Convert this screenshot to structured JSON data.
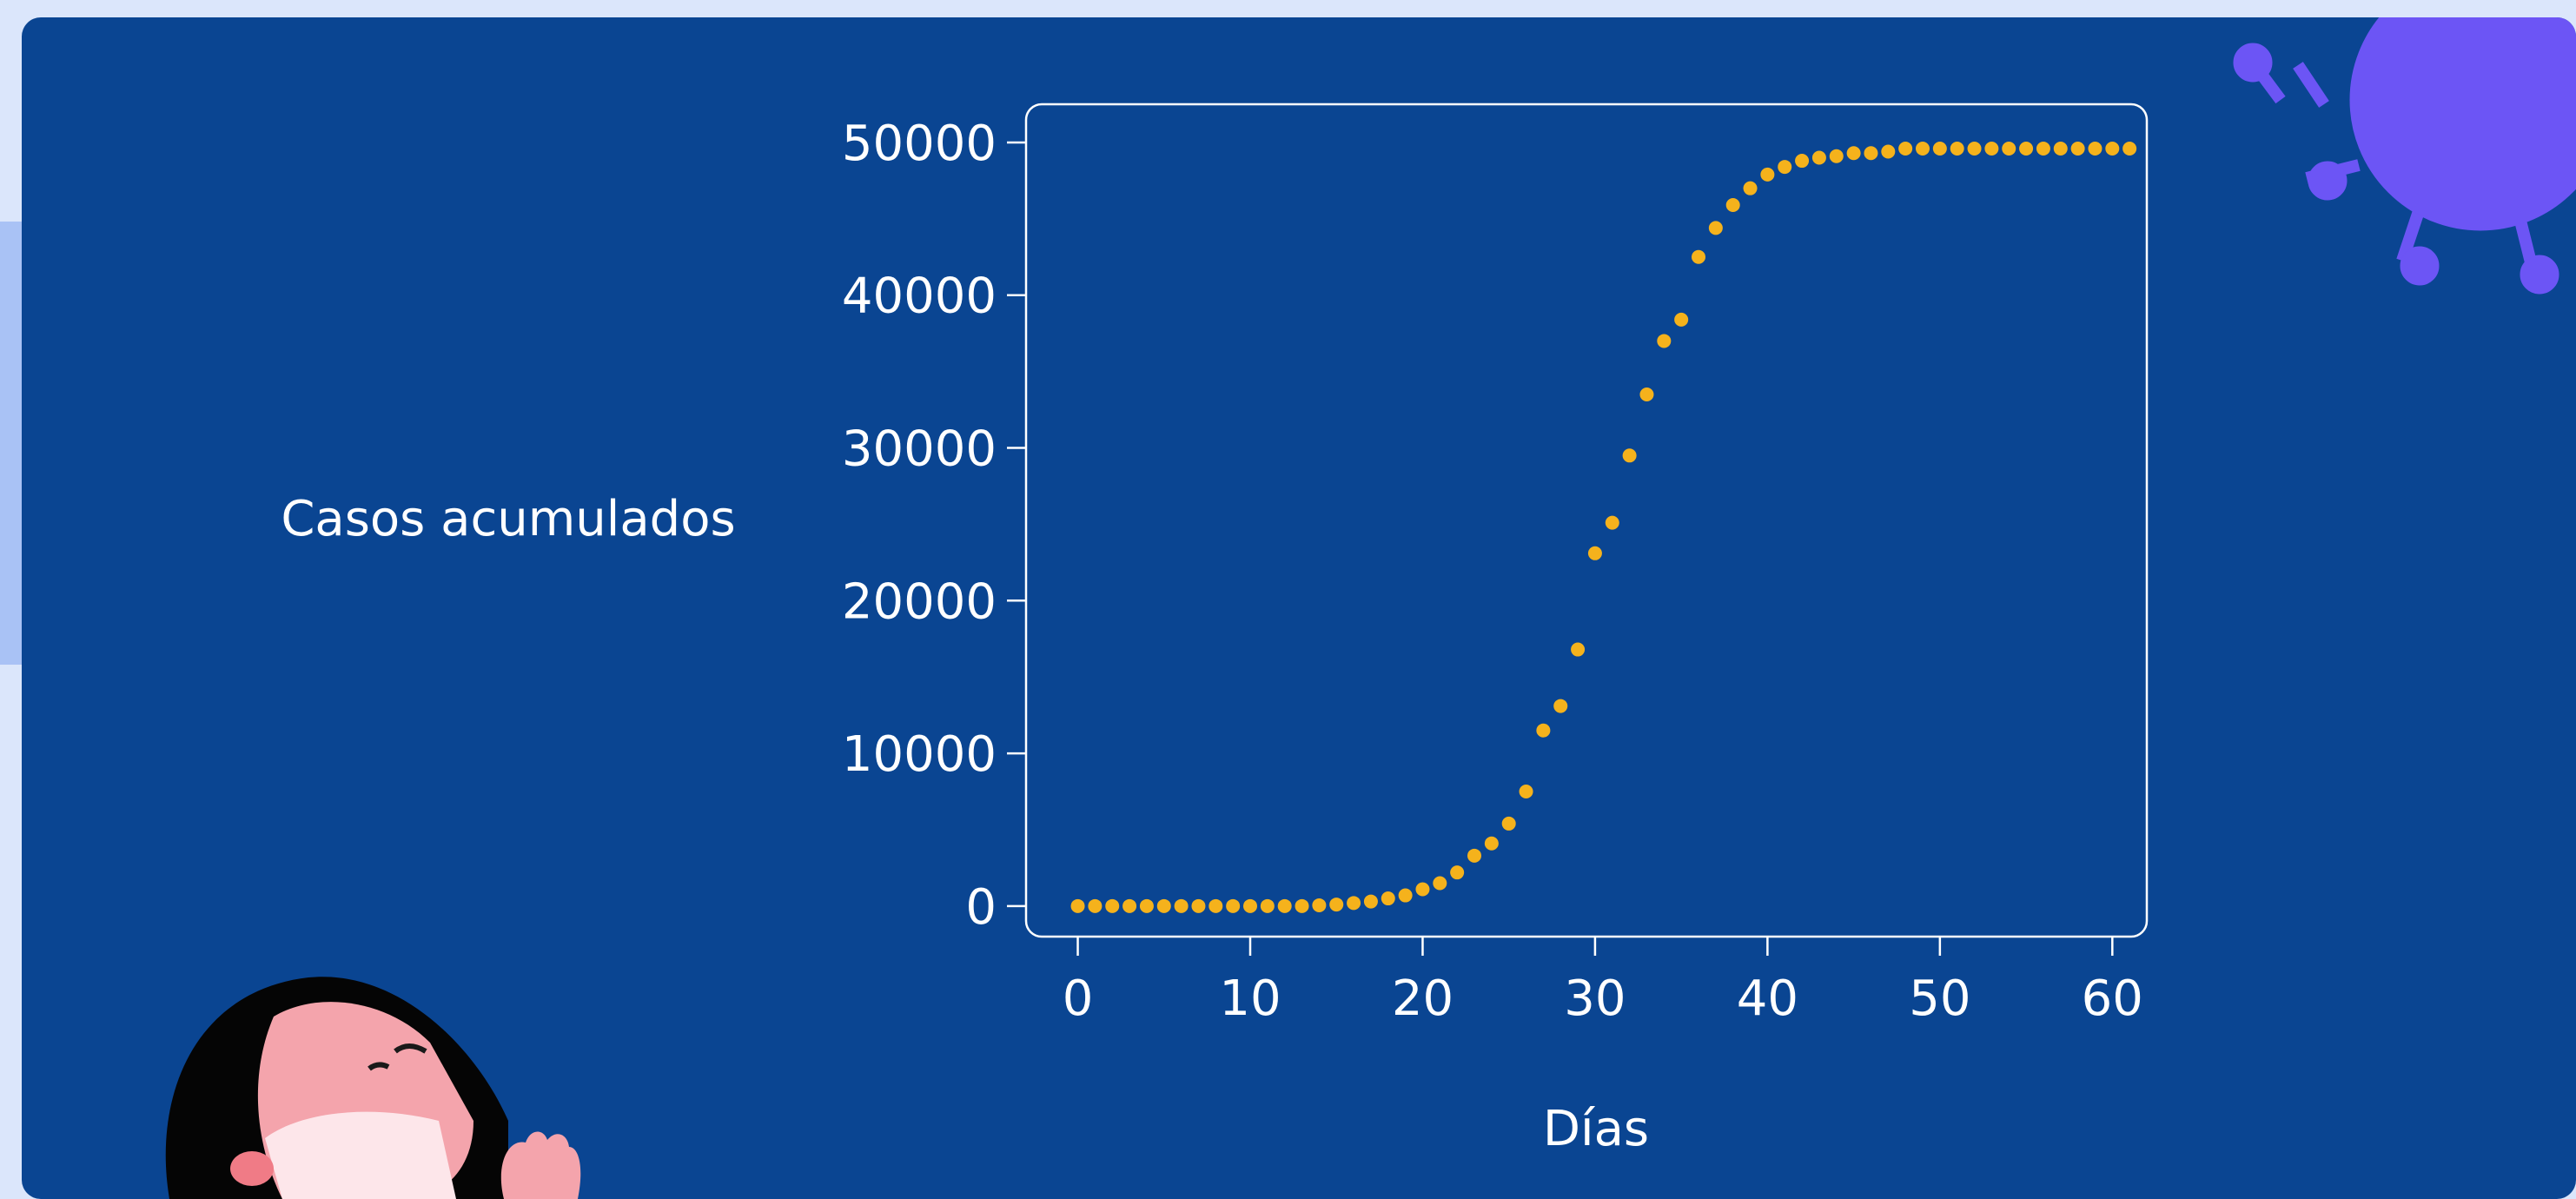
{
  "chart_data": {
    "type": "scatter",
    "title": "",
    "xlabel": "Días",
    "ylabel": "Casos acumulados",
    "xlim": [
      -3,
      62
    ],
    "ylim": [
      -2000,
      52500
    ],
    "xticks": [
      0,
      10,
      20,
      30,
      40,
      50,
      60
    ],
    "yticks": [
      0,
      10000,
      20000,
      30000,
      40000,
      50000
    ],
    "grid": false,
    "legend": "none",
    "colors": {
      "background": "#0a4592",
      "point": "#f5b21c",
      "axis": "#ffffff",
      "text": "#ffffff"
    },
    "series": [
      {
        "x": [
          0,
          1,
          2,
          3,
          4,
          5,
          6,
          7,
          8,
          9,
          10,
          11,
          12,
          13,
          14,
          15,
          16,
          17,
          18,
          19,
          20,
          21,
          22,
          23,
          24,
          25,
          26,
          27,
          28,
          29,
          30,
          31,
          32,
          33,
          34,
          35,
          36,
          37,
          38,
          39,
          40,
          41,
          42,
          43,
          44,
          45,
          46,
          47,
          48,
          49,
          50,
          51,
          52,
          53,
          54,
          55,
          56,
          57,
          58,
          59,
          60,
          61
        ],
        "y": [
          0,
          0,
          0,
          0,
          0,
          0,
          0,
          0,
          0,
          0,
          0,
          0,
          0,
          0,
          50,
          100,
          200,
          300,
          500,
          700,
          1100,
          1500,
          2200,
          3300,
          4100,
          5400,
          7500,
          11500,
          13100,
          16800,
          23100,
          25100,
          29500,
          33500,
          37000,
          38400,
          42500,
          44400,
          45900,
          47000,
          47900,
          48400,
          48800,
          49000,
          49100,
          49300,
          49300,
          49400,
          49600,
          49600,
          49600,
          49600,
          49600,
          49600,
          49600,
          49600,
          49600,
          49600,
          49600,
          49600,
          49600,
          49600
        ]
      }
    ]
  }
}
